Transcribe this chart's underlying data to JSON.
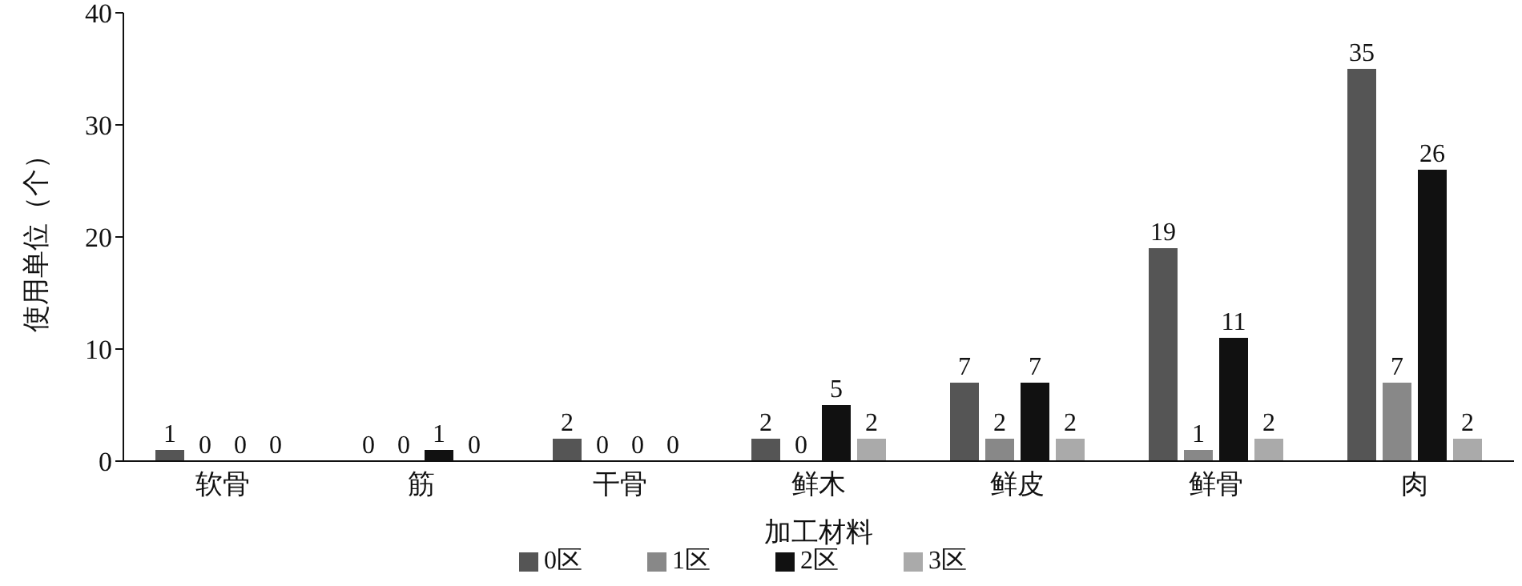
{
  "chart_data": {
    "type": "bar",
    "xlabel": "加工材料",
    "ylabel": "使用单位（个）",
    "categories": [
      "软骨",
      "筋",
      "干骨",
      "鲜木",
      "鲜皮",
      "鲜骨",
      "肉"
    ],
    "series": [
      {
        "name": "0区",
        "color": "#555555",
        "values": [
          1,
          0,
          2,
          2,
          7,
          19,
          35
        ]
      },
      {
        "name": "1区",
        "color": "#888888",
        "values": [
          0,
          0,
          0,
          0,
          2,
          1,
          7
        ]
      },
      {
        "name": "2区",
        "color": "#111111",
        "values": [
          0,
          1,
          0,
          5,
          7,
          11,
          26
        ]
      },
      {
        "name": "3区",
        "color": "#aaaaaa",
        "values": [
          0,
          0,
          0,
          2,
          2,
          2,
          2
        ]
      }
    ],
    "ylim": [
      0,
      40
    ],
    "yticks": [
      0,
      10,
      20,
      30,
      40
    ],
    "grid": false,
    "legend": "bottom",
    "data_labels": true
  }
}
